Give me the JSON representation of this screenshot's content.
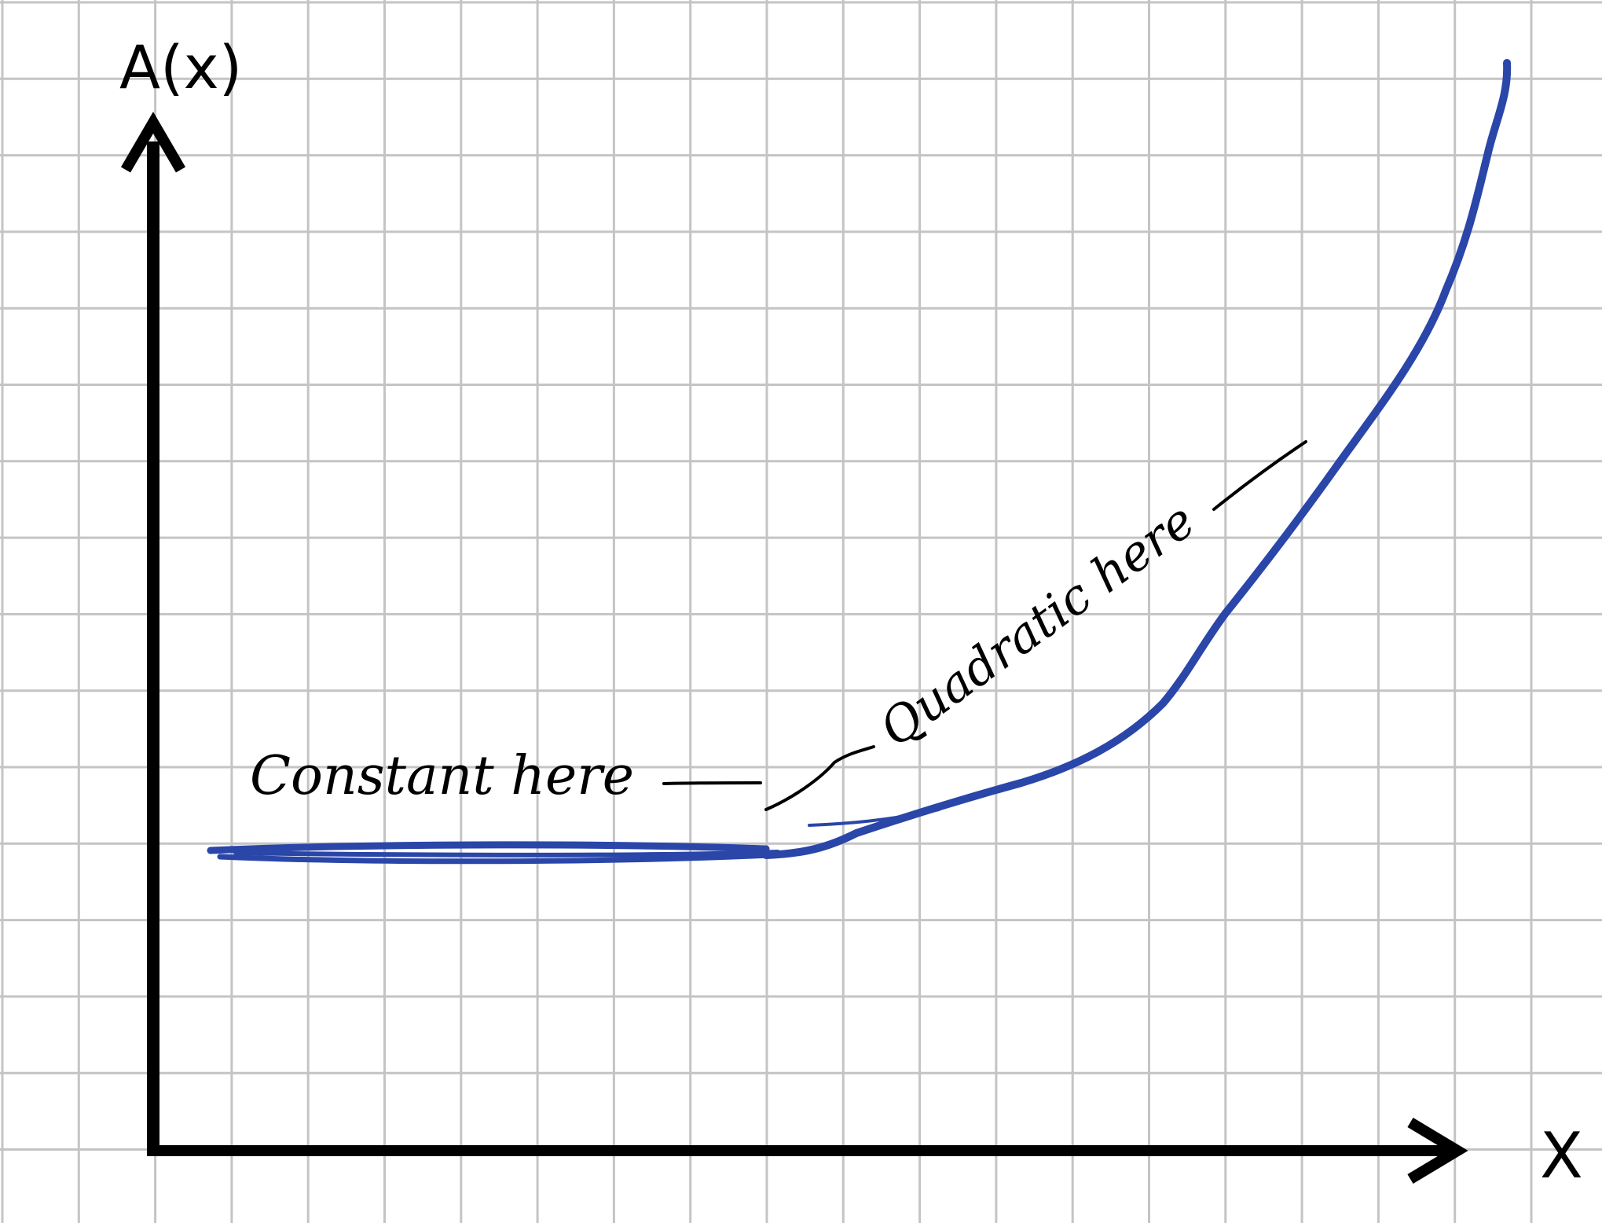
{
  "axes": {
    "y_label": "A(x)",
    "x_label": "X"
  },
  "annotations": {
    "constant": "Constant here",
    "quadratic": "Quadratic here"
  },
  "colors": {
    "background": "#ffffff",
    "grid": "#c4c4c4",
    "axis": "#000000",
    "curve": "#2a46a8",
    "annotation": "#000000"
  }
}
